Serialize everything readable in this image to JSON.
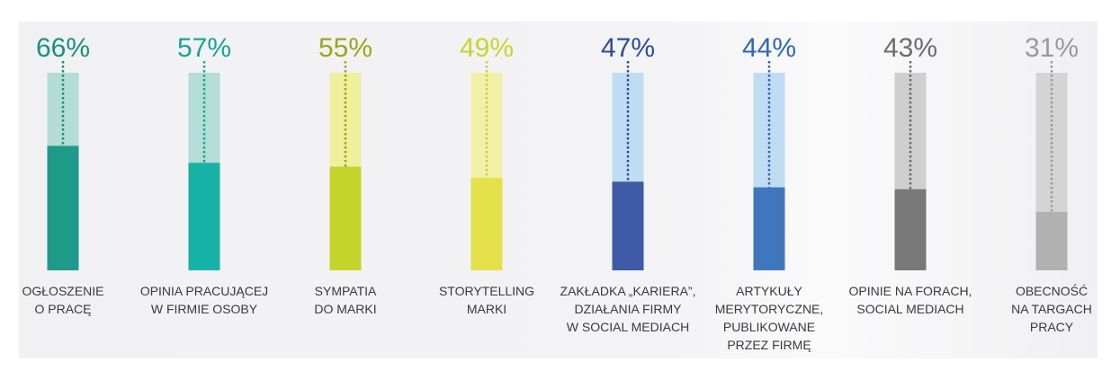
{
  "chart_data": {
    "type": "bar",
    "title": "",
    "xlabel": "",
    "ylabel": "",
    "ylim": [
      0,
      100
    ],
    "grid": false,
    "categories": [
      [
        "OGŁOSZENIE",
        "O PRACĘ"
      ],
      [
        "OPINIA PRACUJĄCEJ",
        "W FIRMIE OSOBY"
      ],
      [
        "SYMPATIA",
        "DO MARKI"
      ],
      [
        "STORYTELLING",
        "MARKI"
      ],
      [
        "ZAKŁADKA „KARIERA”,",
        "DZIAŁANIA FIRMY",
        "W SOCIAL MEDIACH"
      ],
      [
        "ARTYKUŁY",
        "MERYTORYCZNE,",
        "PUBLIKOWANE",
        "PRZEZ FIRMĘ"
      ],
      [
        "OPINIE NA FORACH,",
        "SOCIAL MEDIACH"
      ],
      [
        "OBECNOŚĆ",
        "NA TARGACH",
        "PRACY"
      ]
    ],
    "values": [
      66,
      57,
      55,
      49,
      47,
      44,
      43,
      31
    ],
    "value_labels": [
      "66%",
      "57%",
      "55%",
      "49%",
      "47%",
      "44%",
      "43%",
      "31%"
    ],
    "colors": {
      "fill": [
        "#1e9a88",
        "#17b2a6",
        "#c5d42b",
        "#e3e04a",
        "#3f5aa6",
        "#3e77bb",
        "#7a797a",
        "#b1b1b1"
      ],
      "track": [
        "#b3ddd6",
        "#b3ddd6",
        "#f0ef9e",
        "#f2f0a8",
        "#c0dcf3",
        "#c0dcf3",
        "#cfcfcf",
        "#d4d4d4"
      ],
      "label": [
        "#1a8f7e",
        "#17a598",
        "#9aa51c",
        "#c8d42c",
        "#2f4a9e",
        "#2f67b6",
        "#6b6b6b",
        "#9a9a9a"
      ],
      "category_text": "#3a3a3a"
    }
  }
}
